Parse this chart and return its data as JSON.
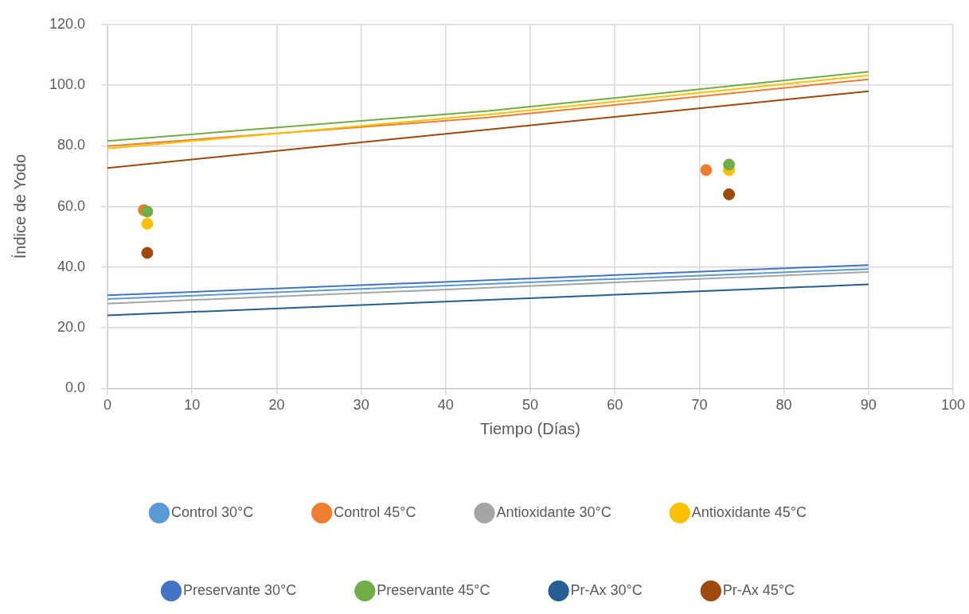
{
  "chart_data": {
    "type": "scatter",
    "xlabel": "Tiempo (Días)",
    "ylabel": "Índice de Yodo",
    "xlim": [
      0,
      100
    ],
    "xticks": [
      0,
      10,
      20,
      30,
      40,
      50,
      60,
      70,
      80,
      90,
      100
    ],
    "ylim": [
      0,
      120
    ],
    "yticks": [
      {
        "value": 0,
        "label": "0.0"
      },
      {
        "value": 20,
        "label": "20.0"
      },
      {
        "value": 40,
        "label": "40.0"
      },
      {
        "value": 60,
        "label": "60.0"
      },
      {
        "value": 80,
        "label": "80.0"
      },
      {
        "value": 100,
        "label": "100.0"
      },
      {
        "value": 120,
        "label": "120.0"
      }
    ],
    "grid": true,
    "legend": "bottom",
    "marker": "circle",
    "series": [
      {
        "name": "Control 30°C",
        "color": "#5b9bd5"
      },
      {
        "name": "Control 45°C",
        "color": "#ed7d31",
        "x": [
          4.3,
          70.8
        ],
        "values": [
          58.8,
          72.0
        ]
      },
      {
        "name": "Antioxidante 30°C",
        "color": "#a5a5a5"
      },
      {
        "name": "Antioxidante 45°C",
        "color": "#ffc000",
        "x": [
          4.7,
          73.5
        ],
        "values": [
          54.3,
          72.0
        ]
      },
      {
        "name": "Preservante 30°C",
        "color": "#4472c4"
      },
      {
        "name": "Preservante 45°C",
        "color": "#70ad47",
        "x": [
          4.7,
          73.5
        ],
        "values": [
          58.3,
          73.8
        ]
      },
      {
        "name": "Pr-Ax 30°C",
        "color": "#255e91"
      },
      {
        "name": "Pr-Ax 45°C",
        "color": "#9e480e",
        "x": [
          4.7,
          73.5
        ],
        "values": [
          44.7,
          64.0
        ]
      },
      {
        "type": "line",
        "marker": "none",
        "color": "#5b9bd5",
        "x": [
          0,
          90
        ],
        "values": [
          29.5,
          39.4
        ]
      },
      {
        "type": "line",
        "marker": "none",
        "color": "#ed7d31",
        "x": [
          0,
          45,
          90
        ],
        "values": [
          79.9,
          89.3,
          101.9
        ]
      },
      {
        "type": "line",
        "marker": "none",
        "color": "#a5a5a5",
        "x": [
          0,
          90
        ],
        "values": [
          28.0,
          38.4
        ]
      },
      {
        "type": "line",
        "marker": "none",
        "color": "#ffc000",
        "x": [
          0,
          45,
          90
        ],
        "values": [
          79.1,
          90.3,
          103.2
        ]
      },
      {
        "type": "line",
        "marker": "none",
        "color": "#4472c4",
        "x": [
          0,
          90
        ],
        "values": [
          30.7,
          40.7
        ]
      },
      {
        "type": "line",
        "marker": "none",
        "color": "#70ad47",
        "x": [
          0,
          45,
          90
        ],
        "values": [
          81.6,
          91.5,
          104.4
        ]
      },
      {
        "type": "line",
        "marker": "none",
        "color": "#255e91",
        "x": [
          0,
          90
        ],
        "values": [
          24.1,
          34.3
        ]
      },
      {
        "type": "line",
        "marker": "none",
        "color": "#9e480e",
        "x": [
          0,
          90
        ],
        "values": [
          72.7,
          98.0
        ]
      }
    ]
  }
}
